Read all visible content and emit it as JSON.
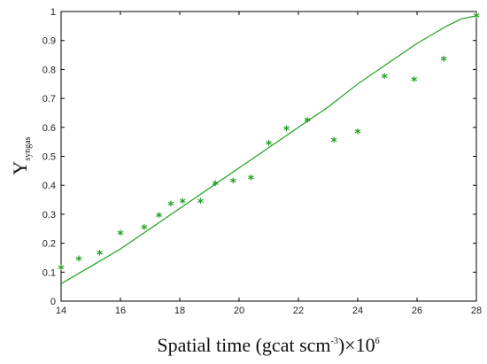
{
  "chart_data": {
    "type": "scatter",
    "xlabel": {
      "main": "Spatial time (gcat scm",
      "sup1": "-3",
      "mid": ")×10",
      "sup2": "6"
    },
    "ylabel": {
      "main": "Y",
      "sub": "syngas"
    },
    "xlim": [
      14,
      28
    ],
    "ylim": [
      0,
      1
    ],
    "xticks": [
      "14",
      "16",
      "18",
      "20",
      "22",
      "24",
      "26",
      "28"
    ],
    "yticks": [
      "0",
      "0.1",
      "0.2",
      "0.3",
      "0.4",
      "0.5",
      "0.6",
      "0.7",
      "0.8",
      "0.9",
      "1"
    ],
    "grid": false,
    "legend": "none",
    "colors": {
      "series": "#1fa01f",
      "axis": "#000000"
    },
    "series": [
      {
        "kind": "points",
        "marker": "*",
        "x": [
          14.0,
          14.6,
          15.3,
          16.0,
          16.8,
          17.3,
          17.7,
          18.1,
          18.7,
          19.2,
          19.8,
          20.4,
          21.0,
          21.6,
          22.3,
          23.2,
          24.0,
          24.9,
          25.9,
          26.9,
          28.0
        ],
        "y": [
          0.11,
          0.14,
          0.16,
          0.23,
          0.25,
          0.29,
          0.33,
          0.34,
          0.34,
          0.4,
          0.41,
          0.42,
          0.54,
          0.59,
          0.62,
          0.55,
          0.58,
          0.77,
          0.76,
          0.83,
          0.98
        ]
      },
      {
        "kind": "line",
        "x": [
          14,
          15,
          16,
          17,
          18,
          19,
          20,
          21,
          22,
          23,
          24,
          25,
          26,
          27,
          27.5,
          28
        ],
        "y": [
          0.06,
          0.12,
          0.18,
          0.25,
          0.32,
          0.39,
          0.46,
          0.53,
          0.6,
          0.67,
          0.75,
          0.82,
          0.89,
          0.95,
          0.975,
          0.985
        ]
      }
    ]
  }
}
